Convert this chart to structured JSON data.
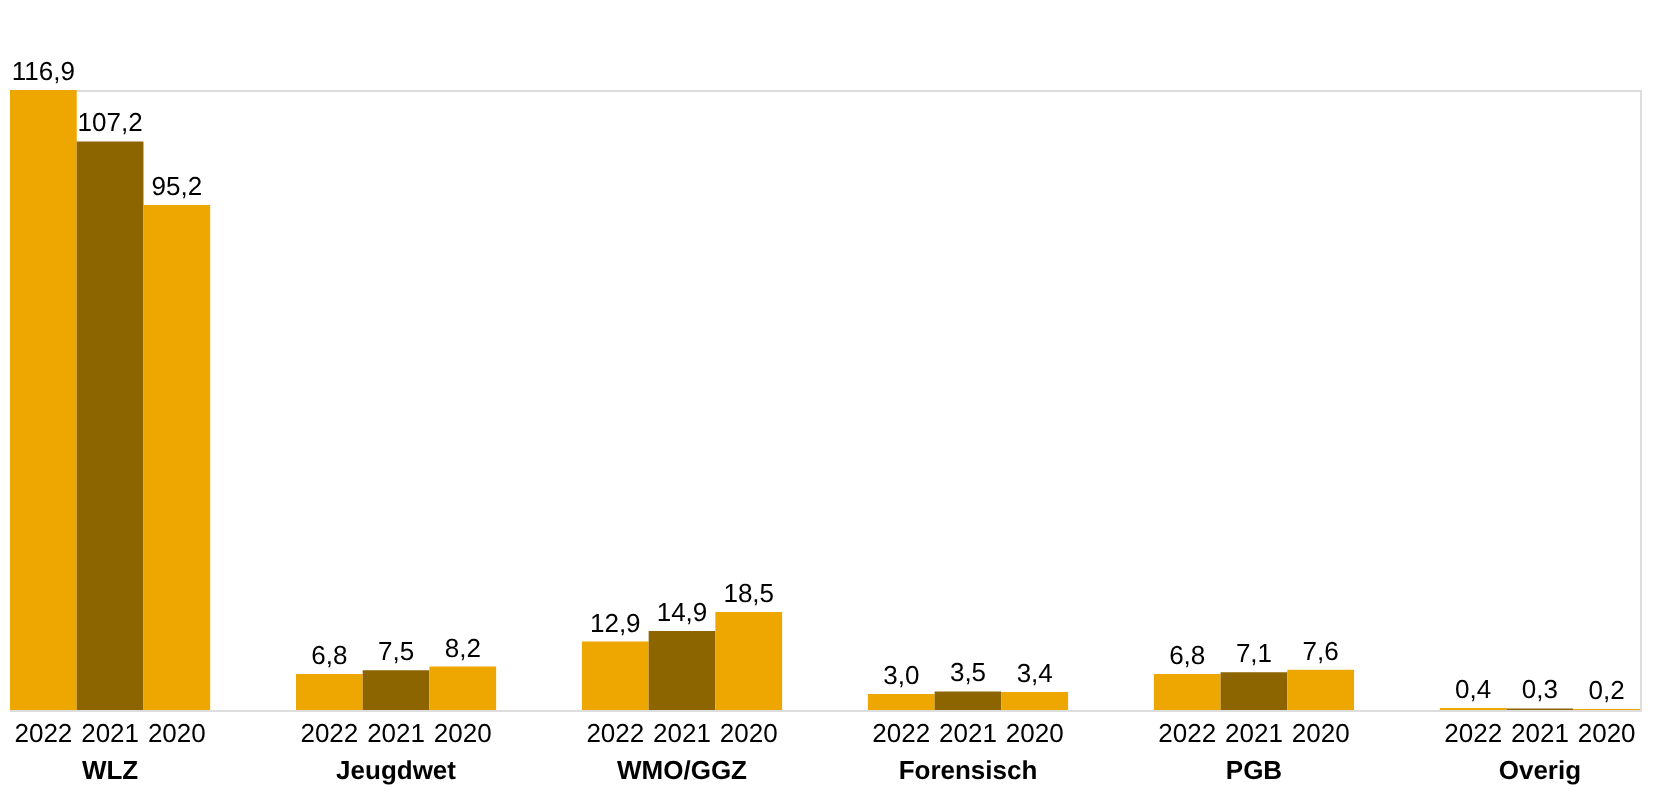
{
  "chart_data": {
    "type": "bar",
    "categories": [
      "WLZ",
      "Jeugdwet",
      "WMO/GGZ",
      "Forensisch",
      "PGB",
      "Overig"
    ],
    "series": [
      {
        "name": "2022",
        "color": "#eea600",
        "values": [
          116.9,
          6.8,
          12.9,
          3.0,
          6.8,
          0.4
        ],
        "value_labels": [
          "116,9",
          "6,8",
          "12,9",
          "3,0",
          "6,8",
          "0,4"
        ]
      },
      {
        "name": "2021",
        "color": "#8c6400",
        "values": [
          107.2,
          7.5,
          14.9,
          3.5,
          7.1,
          0.3
        ],
        "value_labels": [
          "107,2",
          "7,5",
          "14,9",
          "3,5",
          "7,1",
          "0,3"
        ]
      },
      {
        "name": "2020",
        "color": "#eea600",
        "values": [
          95.2,
          8.2,
          18.5,
          3.4,
          7.6,
          0.2
        ],
        "value_labels": [
          "95,2",
          "8,2",
          "18,5",
          "3,4",
          "7,6",
          "0,2"
        ]
      }
    ]
  }
}
